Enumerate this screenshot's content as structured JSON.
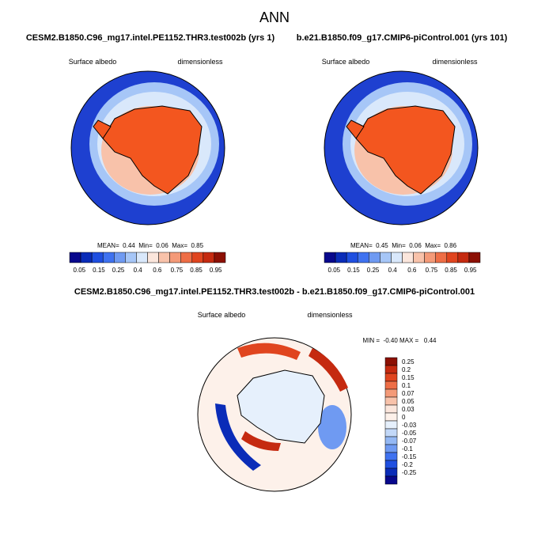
{
  "title": "ANN",
  "panels": [
    {
      "header": "CESM2.B1850.C96_mg17.intel.PE1152.THR3.test002b (yrs 1)",
      "variable": "Surface albedo",
      "units": "dimensionless",
      "stats": "MEAN=  0.44  Min=  0.06  Max=  0.85",
      "colorbar": {
        "labels": [
          "0.05",
          "0.15",
          "0.25",
          "0.4",
          "0.6",
          "0.75",
          "0.85",
          "0.95"
        ],
        "colors": [
          "#08088c",
          "#0a2cb8",
          "#1f4fe0",
          "#3f72f0",
          "#6f9af2",
          "#a6c6f7",
          "#d9e8fb",
          "#fbe6dc",
          "#f8c2aa",
          "#f49a78",
          "#ee6e46",
          "#e0451f",
          "#c52a10",
          "#8c1004"
        ]
      }
    },
    {
      "header": "b.e21.B1850.f09_g17.CMIP6-piControl.001 (yrs 101)",
      "variable": "Surface albedo",
      "units": "dimensionless",
      "stats": "MEAN=  0.45  Min=  0.06  Max=  0.86",
      "colorbar": {
        "labels": [
          "0.05",
          "0.15",
          "0.25",
          "0.4",
          "0.6",
          "0.75",
          "0.85",
          "0.95"
        ],
        "colors": [
          "#08088c",
          "#0a2cb8",
          "#1f4fe0",
          "#3f72f0",
          "#6f9af2",
          "#a6c6f7",
          "#d9e8fb",
          "#fbe6dc",
          "#f8c2aa",
          "#f49a78",
          "#ee6e46",
          "#e0451f",
          "#c52a10",
          "#8c1004"
        ]
      }
    },
    {
      "header": "CESM2.B1850.C96_mg17.intel.PE1152.THR3.test002b - b.e21.B1850.f09_g17.CMIP6-piControl.001",
      "variable": "Surface albedo",
      "units": "dimensionless",
      "stats": "MIN =  -0.40 MAX =   0.44",
      "colorbar": {
        "labels": [
          "0.25",
          "0.2",
          "0.15",
          "0.1",
          "0.07",
          "0.05",
          "0.03",
          "0",
          "-0.03",
          "-0.05",
          "-0.07",
          "-0.1",
          "-0.15",
          "-0.2",
          "-0.25"
        ],
        "colors": [
          "#8c1004",
          "#c52a10",
          "#e0451f",
          "#ee6e46",
          "#f49a78",
          "#f8c2aa",
          "#fbe6dc",
          "#fdf1ea",
          "#e6f0fc",
          "#c2d8f8",
          "#94b8f4",
          "#6f9af2",
          "#3f72f0",
          "#1f4fe0",
          "#0a2cb8",
          "#08088c"
        ]
      }
    }
  ]
}
